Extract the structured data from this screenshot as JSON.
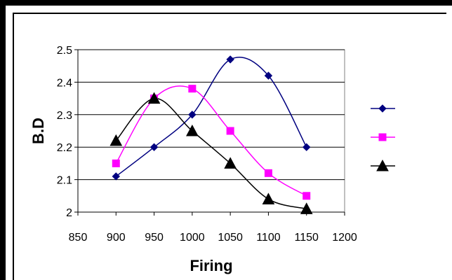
{
  "chart_data": {
    "type": "line",
    "title": "",
    "xlabel": "Firing",
    "ylabel": "B.D",
    "xlim": [
      850,
      1200
    ],
    "ylim": [
      2,
      2.5
    ],
    "xticks": [
      850,
      900,
      950,
      1000,
      1050,
      1100,
      1150,
      1200
    ],
    "yticks": [
      2,
      2.1,
      2.2,
      2.3,
      2.4,
      2.5
    ],
    "grid": true,
    "smoothed": true,
    "legend_placement": "right",
    "series": [
      {
        "color": "#000080",
        "marker": "diamond",
        "x": [
          900,
          950,
          1000,
          1050,
          1100,
          1150
        ],
        "values": [
          2.11,
          2.2,
          2.3,
          2.47,
          2.42,
          2.2
        ]
      },
      {
        "color": "#ff00ff",
        "marker": "square",
        "x": [
          900,
          950,
          1000,
          1050,
          1100,
          1150
        ],
        "values": [
          2.15,
          2.35,
          2.38,
          2.25,
          2.12,
          2.05
        ]
      },
      {
        "color": "#000000",
        "marker": "triangle",
        "x": [
          900,
          950,
          1000,
          1050,
          1100,
          1150
        ],
        "values": [
          2.22,
          2.35,
          2.25,
          2.15,
          2.04,
          2.01
        ]
      }
    ]
  }
}
